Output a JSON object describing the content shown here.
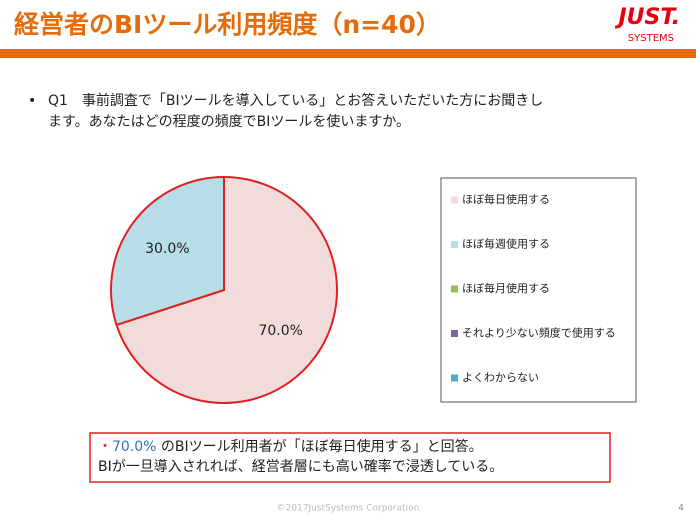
{
  "header": {
    "title": "経営者のBIツール利用頻度（n=40）",
    "logo_main": "JUST.",
    "logo_sub": "SYSTEMS"
  },
  "question": {
    "bullet": "•",
    "lines": [
      "Q1　事前調査で「BIツールを導入している」とお答えいただいた方にお聞きし",
      "ます。あなたはどの程度の頻度でBIツールを使いますか。"
    ]
  },
  "chart_data": {
    "type": "pie",
    "categories": [
      "ほぼ毎日使用する",
      "ほぼ毎週使用する",
      "ほぼ毎月使用する",
      "それより少ない頻度で使用する",
      "よくわからない"
    ],
    "values": [
      70,
      30,
      0,
      0,
      0
    ],
    "value_labels": [
      "70.0%",
      "30.0%",
      null,
      null,
      null
    ],
    "colors": [
      "#f2dcdb",
      "#b7dde8",
      "#9bbb59",
      "#8064a2",
      "#4bacc6"
    ],
    "edge_color": "#e02020",
    "legend": "right"
  },
  "callout": {
    "mark": "・",
    "highlight": "70.0%",
    "line1_rest": " のBIツール利用者が「ほぼ毎日使用する」と回答。",
    "line2": "BIが一旦導入されれば、経営者層にも高い確率で浸透している。"
  },
  "footer": {
    "copyright": "©2017JustSystems Corporation",
    "page": "4"
  }
}
